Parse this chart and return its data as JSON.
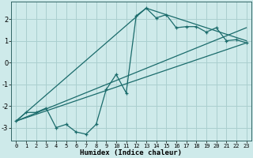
{
  "xlabel": "Humidex (Indice chaleur)",
  "ylabel": "",
  "bg_color": "#ceeaea",
  "grid_color": "#aacfcf",
  "line_color": "#1a6b6b",
  "xlim": [
    -0.5,
    23.5
  ],
  "ylim": [
    -3.6,
    2.8
  ],
  "xticks": [
    0,
    1,
    2,
    3,
    4,
    5,
    6,
    7,
    8,
    9,
    10,
    11,
    12,
    13,
    14,
    15,
    16,
    17,
    18,
    19,
    20,
    21,
    22,
    23
  ],
  "yticks": [
    -3,
    -2,
    -1,
    0,
    1,
    2
  ],
  "main_curve": {
    "x": [
      0,
      1,
      2,
      3,
      4,
      5,
      6,
      7,
      8,
      9,
      10,
      11,
      12,
      13,
      14,
      15,
      16,
      17,
      18,
      19,
      20,
      21,
      22,
      23
    ],
    "y": [
      -2.7,
      -2.3,
      -2.3,
      -2.1,
      -3.0,
      -2.85,
      -3.2,
      -3.3,
      -2.85,
      -1.25,
      -0.55,
      -1.4,
      2.15,
      2.5,
      2.05,
      2.2,
      1.6,
      1.65,
      1.65,
      1.4,
      1.6,
      1.0,
      1.05,
      0.9
    ]
  },
  "line1": {
    "x": [
      0,
      23
    ],
    "y": [
      -2.7,
      0.9
    ]
  },
  "line2": {
    "x": [
      0,
      13,
      23
    ],
    "y": [
      -2.7,
      2.5,
      1.0
    ]
  },
  "line3": {
    "x": [
      0,
      23
    ],
    "y": [
      -2.7,
      1.6
    ]
  }
}
